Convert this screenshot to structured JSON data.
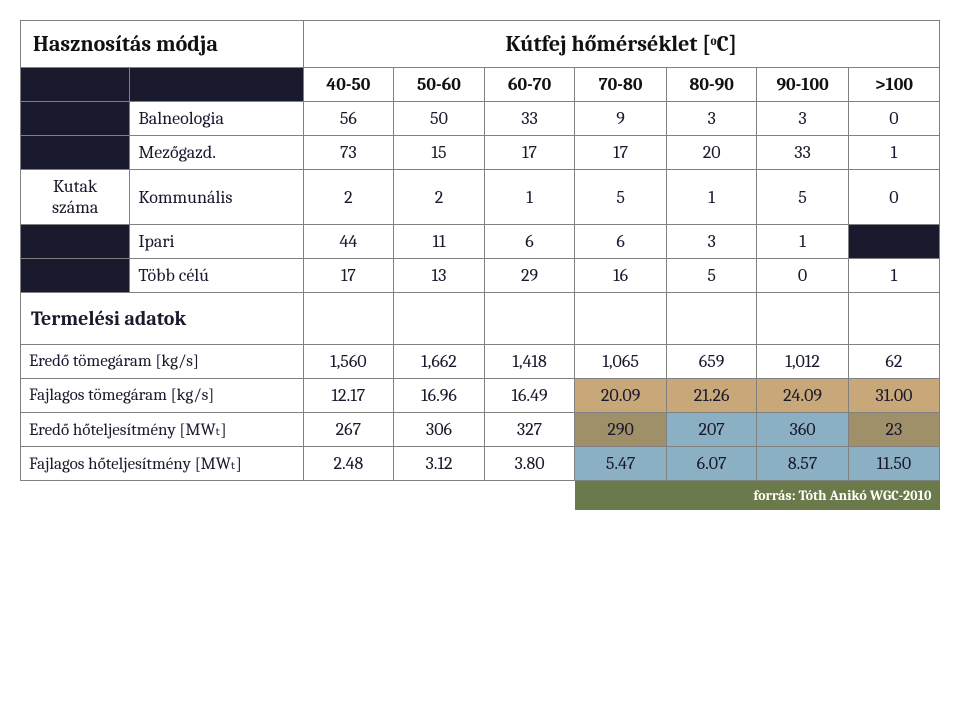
{
  "header": {
    "left": "Hasznosítás módja",
    "center": "Kútfej hőmérséklet [ᵒC]"
  },
  "cols": [
    "40-50",
    "50-60",
    "60-70",
    "70-80",
    "80-90",
    "90-100",
    ">100"
  ],
  "stub": "Kutak száma",
  "rows1": [
    {
      "label": "Balneologia",
      "v": [
        "56",
        "50",
        "33",
        "9",
        "3",
        "3",
        "0"
      ]
    },
    {
      "label": "Mezőgazd.",
      "v": [
        "73",
        "15",
        "17",
        "17",
        "20",
        "33",
        "1"
      ]
    },
    {
      "label": "Kommunális",
      "v": [
        "2",
        "2",
        "1",
        "5",
        "1",
        "5",
        "0"
      ]
    },
    {
      "label": "Ipari",
      "v": [
        "44",
        "11",
        "6",
        "6",
        "3",
        "1",
        ""
      ]
    },
    {
      "label": "Több célú",
      "v": [
        "17",
        "13",
        "29",
        "16",
        "5",
        "0",
        "1"
      ]
    }
  ],
  "section": "Termelési adatok",
  "rows2": [
    {
      "label": "Eredő tömegáram [kg/s]",
      "v": [
        "1,560",
        "1,662",
        "1,418",
        "1,065",
        "659",
        "1,012",
        "62"
      ]
    },
    {
      "label": "Fajlagos tömegáram [kg/s]",
      "v": [
        "12.17",
        "16.96",
        "16.49",
        "20.09",
        "21.26",
        "24.09",
        "31.00"
      ]
    },
    {
      "label": "Eredő hőteljesítmény [MWₜ]",
      "v": [
        "267",
        "306",
        "327",
        "290",
        "207",
        "360",
        "23"
      ]
    },
    {
      "label": "Fajlagos hőteljesítmény [MWₜ]",
      "v": [
        "2.48",
        "3.12",
        "3.80",
        "5.47",
        "6.07",
        "8.57",
        "11.50"
      ]
    }
  ],
  "source": "forrás: Tóth Anikó WGC-2010"
}
